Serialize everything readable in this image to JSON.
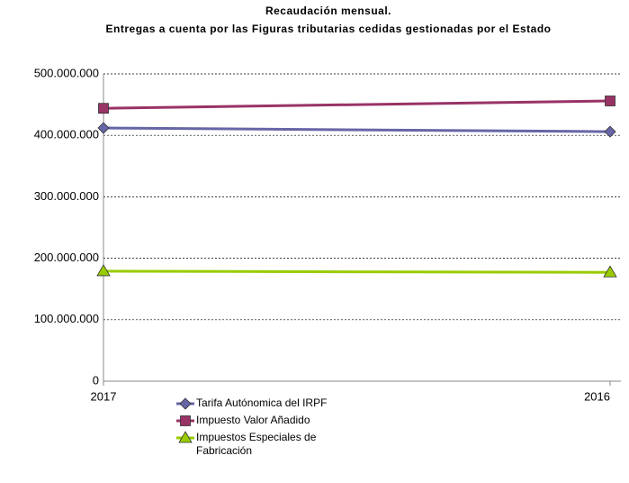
{
  "chart_data": {
    "type": "line",
    "title": "Recaudación mensual.",
    "subtitle": "Entregas a cuenta por las Figuras tributarias cedidas gestionadas por el Estado",
    "categories": [
      "2017",
      "2016"
    ],
    "series": [
      {
        "name": "Tarifa Autónomica del IRPF",
        "color": "#6666a6",
        "marker": "diamond",
        "values": [
          412000000,
          406000000
        ]
      },
      {
        "name": "Impuesto Valor Añadido",
        "color": "#993366",
        "marker": "square",
        "values": [
          444000000,
          456000000
        ]
      },
      {
        "name": "Impuestos Especiales de Fabricación",
        "color": "#99cc00",
        "marker": "triangle",
        "values": [
          179000000,
          177000000
        ]
      }
    ],
    "ylim": [
      0,
      500000000
    ],
    "yticks": [
      0,
      {
        "value": 100000000,
        "label": "100.000.000"
      },
      {
        "value": 200000000,
        "label": "200.000.000"
      },
      {
        "value": 300000000,
        "label": "300.000.000"
      },
      {
        "value": 400000000,
        "label": "400.000.000"
      },
      {
        "value": 500000000,
        "label": "500.000.000"
      }
    ],
    "grid": true
  }
}
